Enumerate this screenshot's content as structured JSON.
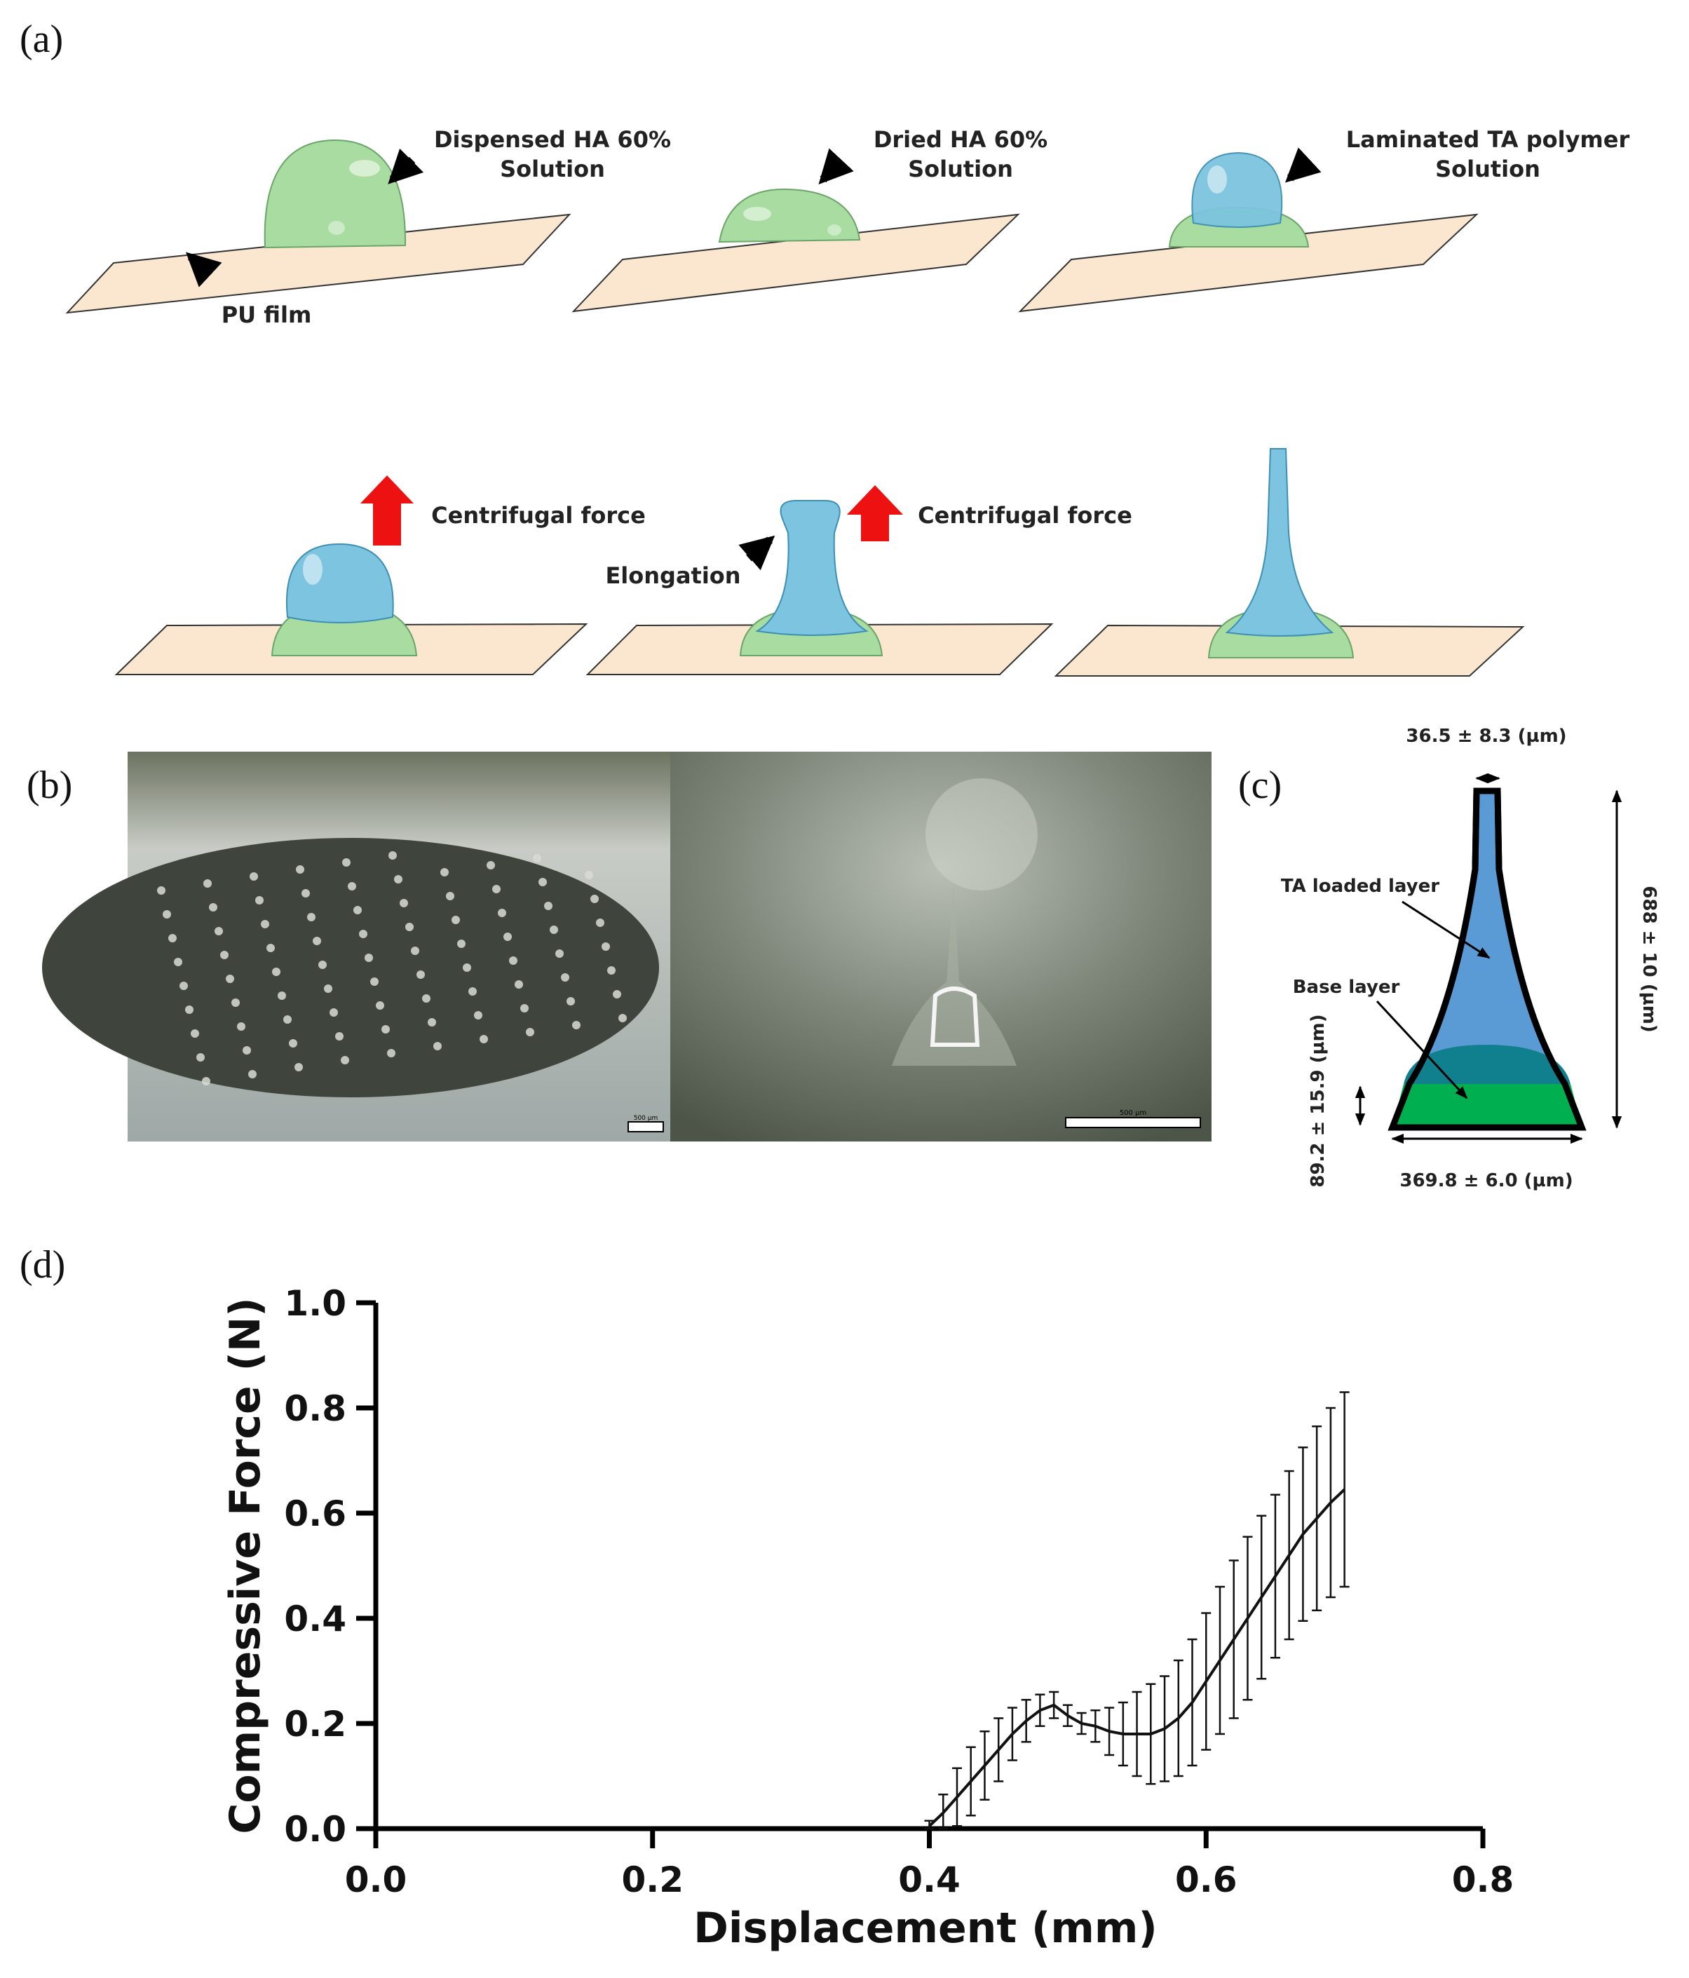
{
  "panels": {
    "a": "(a)",
    "b": "(b)",
    "c": "(c)",
    "d": "(d)"
  },
  "panel_a": {
    "step1": {
      "line1": "Dispensed HA 60%",
      "line2": "Solution",
      "film_label": "PU film"
    },
    "step2": {
      "line1": "Dried HA 60%",
      "line2": "Solution"
    },
    "step3": {
      "line1": "Laminated TA polymer",
      "line2": "Solution"
    },
    "step4": {
      "force": "Centrifugal force"
    },
    "step5": {
      "force": "Centrifugal force",
      "elongation": "Elongation"
    },
    "colors": {
      "film": "#fbe6cf",
      "ha": "#a8dca0",
      "ta": "#7cc4df",
      "arrow_red": "#ee1111"
    }
  },
  "panel_b": {
    "scale_left": "500 µm",
    "scale_right": "500 µm"
  },
  "panel_c": {
    "tip_width": "36.5 ± 8.3 (µm)",
    "height": "688 ± 10 (µm)",
    "base_height": "89.2 ± 15.9 (µm)",
    "base_width": "369.8 ± 6.0 (µm)",
    "ta_layer": "TA loaded layer",
    "base_layer": "Base layer",
    "colors": {
      "ta": "#5b9bd5",
      "base": "#00b050",
      "overlap": "#10808f"
    }
  },
  "chart_data": {
    "type": "line",
    "xlabel": "Displacement (mm)",
    "ylabel": "Compressive Force (N)",
    "xlim": [
      0.0,
      0.8
    ],
    "ylim": [
      0.0,
      1.0
    ],
    "xticks": [
      "0.0",
      "0.2",
      "0.4",
      "0.6",
      "0.8"
    ],
    "yticks": [
      "0.0",
      "0.2",
      "0.4",
      "0.6",
      "0.8",
      "1.0"
    ],
    "grid": false,
    "x": [
      0.4,
      0.41,
      0.42,
      0.43,
      0.44,
      0.45,
      0.46,
      0.47,
      0.48,
      0.49,
      0.5,
      0.51,
      0.52,
      0.53,
      0.54,
      0.55,
      0.56,
      0.57,
      0.58,
      0.59,
      0.6,
      0.61,
      0.62,
      0.63,
      0.64,
      0.65,
      0.66,
      0.67,
      0.68,
      0.69,
      0.7
    ],
    "y": [
      0.005,
      0.03,
      0.06,
      0.09,
      0.12,
      0.15,
      0.18,
      0.205,
      0.225,
      0.235,
      0.215,
      0.2,
      0.195,
      0.185,
      0.18,
      0.18,
      0.18,
      0.19,
      0.21,
      0.24,
      0.28,
      0.32,
      0.36,
      0.4,
      0.44,
      0.48,
      0.52,
      0.56,
      0.59,
      0.62,
      0.645
    ],
    "err": [
      0.01,
      0.035,
      0.055,
      0.065,
      0.065,
      0.06,
      0.05,
      0.04,
      0.03,
      0.025,
      0.02,
      0.02,
      0.03,
      0.045,
      0.06,
      0.08,
      0.095,
      0.1,
      0.11,
      0.12,
      0.13,
      0.14,
      0.15,
      0.155,
      0.155,
      0.155,
      0.16,
      0.165,
      0.175,
      0.18,
      0.185
    ]
  }
}
